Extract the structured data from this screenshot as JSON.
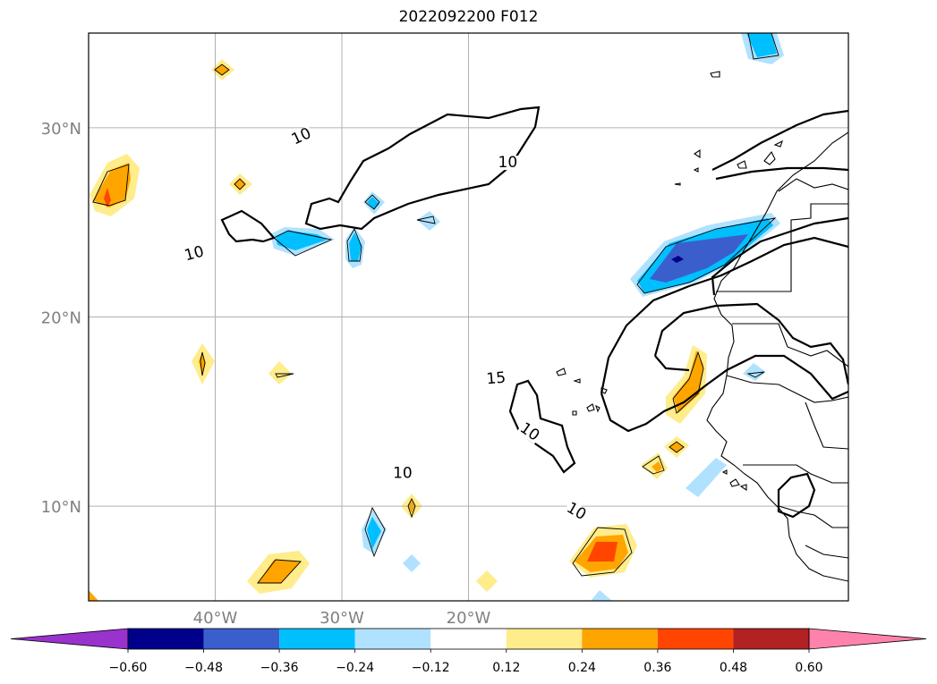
{
  "title": "2022092200 F012",
  "map": {
    "lon_range": [
      -50,
      10
    ],
    "lat_range": [
      5,
      35
    ],
    "lat_labels": [
      {
        "lat": 30,
        "text": "30°N"
      },
      {
        "lat": 20,
        "text": "20°N"
      },
      {
        "lat": 10,
        "text": "10°N"
      }
    ],
    "lon_labels": [
      {
        "lon": -40,
        "text": "40°W"
      },
      {
        "lon": -30,
        "text": "30°W"
      },
      {
        "lon": -20,
        "text": "20°W"
      }
    ],
    "contour_labels": [
      {
        "text": "10",
        "lon": -33.1,
        "lat": 29.4,
        "angle": -25
      },
      {
        "text": "10",
        "lon": -41.6,
        "lat": 23.2,
        "angle": -15
      },
      {
        "text": "10",
        "lon": -25.2,
        "lat": 11.6,
        "angle": 0
      },
      {
        "text": "15",
        "lon": -17.8,
        "lat": 16.6,
        "angle": -5
      },
      {
        "text": "10",
        "lon": -15.3,
        "lat": 13.8,
        "angle": 35
      },
      {
        "text": "10",
        "lon": -16.9,
        "lat": 28.0,
        "angle": 0
      },
      {
        "text": "10",
        "lon": -11.6,
        "lat": 9.6,
        "angle": 30
      }
    ],
    "grid_color": "#b0b0b0"
  },
  "colorbar": {
    "ticks": [
      "−0.60",
      "−0.48",
      "−0.36",
      "−0.24",
      "−0.12",
      "0.12",
      "0.24",
      "0.36",
      "0.48",
      "0.60"
    ],
    "colors": [
      "#9a32cd",
      "#00008b",
      "#3a5fcd",
      "#00bfff",
      "#b0e2ff",
      "#ffffff",
      "#ffec8b",
      "#ffa500",
      "#ff4500",
      "#b22222",
      "#ff82ab"
    ]
  }
}
